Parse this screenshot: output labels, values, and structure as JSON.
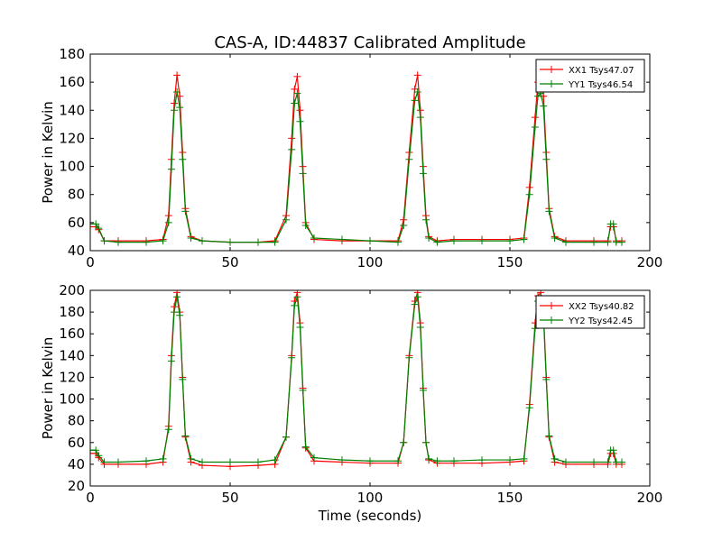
{
  "figure_title": "CAS-A, ID:44837 Calibrated Amplitude",
  "colors": {
    "xx": "#ff0000",
    "yy": "#008000",
    "axis": "#000000"
  },
  "chart_data": [
    {
      "type": "line",
      "title": "CAS-A, ID:44837 Calibrated Amplitude",
      "xlabel": "",
      "ylabel": "Power in Kelvin",
      "xlim": [
        0,
        200
      ],
      "ylim": [
        40,
        180
      ],
      "xticks": [
        0,
        50,
        100,
        150,
        200
      ],
      "yticks": [
        40,
        60,
        80,
        100,
        120,
        140,
        160,
        180
      ],
      "grid": false,
      "legend_position": "top-right",
      "marker": "+",
      "series": [
        {
          "name": "XX1 Tsys47.07",
          "color": "#ff0000",
          "x": [
            0,
            2,
            3,
            5,
            10,
            20,
            26,
            28,
            29,
            30,
            31,
            32,
            33,
            34,
            36,
            40,
            50,
            60,
            66,
            70,
            72,
            73,
            74,
            75,
            76,
            77,
            80,
            90,
            100,
            110,
            112,
            114,
            116,
            117,
            118,
            119,
            120,
            121,
            124,
            130,
            140,
            150,
            155,
            157,
            159,
            160,
            161,
            162,
            163,
            164,
            166,
            170,
            180,
            185,
            186,
            187,
            188,
            190
          ],
          "values": [
            57,
            57,
            55,
            47,
            47,
            47,
            48,
            65,
            105,
            145,
            165,
            150,
            110,
            70,
            50,
            47,
            46,
            46,
            47,
            65,
            120,
            155,
            164,
            140,
            100,
            60,
            48,
            47,
            47,
            47,
            62,
            110,
            155,
            165,
            140,
            100,
            65,
            50,
            47,
            48,
            48,
            48,
            49,
            85,
            135,
            160,
            165,
            150,
            110,
            70,
            50,
            47,
            47,
            47,
            57,
            57,
            47,
            47
          ]
        },
        {
          "name": "YY1 Tsys46.54",
          "color": "#008000",
          "x": [
            0,
            2,
            3,
            5,
            10,
            20,
            26,
            28,
            29,
            30,
            31,
            32,
            33,
            34,
            36,
            40,
            50,
            60,
            66,
            70,
            72,
            73,
            74,
            75,
            76,
            77,
            80,
            90,
            100,
            110,
            112,
            114,
            116,
            117,
            118,
            119,
            120,
            121,
            124,
            130,
            140,
            150,
            155,
            157,
            159,
            160,
            161,
            162,
            163,
            164,
            166,
            170,
            180,
            185,
            186,
            187,
            188,
            190
          ],
          "values": [
            59,
            59,
            56,
            47,
            46,
            46,
            47,
            60,
            98,
            140,
            153,
            142,
            105,
            68,
            49,
            47,
            46,
            46,
            46,
            62,
            112,
            145,
            152,
            132,
            95,
            58,
            49,
            48,
            47,
            46,
            58,
            105,
            147,
            153,
            135,
            95,
            62,
            49,
            46,
            47,
            47,
            47,
            48,
            80,
            128,
            150,
            152,
            143,
            105,
            68,
            49,
            46,
            46,
            46,
            59,
            59,
            46,
            46
          ]
        }
      ]
    },
    {
      "type": "line",
      "title": "",
      "xlabel": "Time (seconds)",
      "ylabel": "Power in Kelvin",
      "xlim": [
        0,
        200
      ],
      "ylim": [
        20,
        200
      ],
      "xticks": [
        0,
        50,
        100,
        150,
        200
      ],
      "yticks": [
        20,
        40,
        60,
        80,
        100,
        120,
        140,
        160,
        180,
        200
      ],
      "grid": false,
      "legend_position": "top-right",
      "marker": "+",
      "series": [
        {
          "name": "XX2 Tsys40.82",
          "color": "#ff0000",
          "x": [
            0,
            2,
            3,
            5,
            10,
            20,
            26,
            28,
            29,
            30,
            31,
            32,
            33,
            34,
            36,
            40,
            50,
            60,
            66,
            70,
            72,
            73,
            74,
            75,
            76,
            77,
            80,
            90,
            100,
            110,
            112,
            114,
            116,
            117,
            118,
            119,
            120,
            121,
            124,
            130,
            140,
            150,
            155,
            157,
            159,
            160,
            161,
            162,
            163,
            164,
            166,
            170,
            180,
            185,
            186,
            187,
            188,
            190
          ],
          "values": [
            50,
            50,
            46,
            40,
            40,
            40,
            42,
            75,
            140,
            185,
            198,
            180,
            120,
            65,
            42,
            39,
            38,
            39,
            40,
            65,
            140,
            190,
            198,
            170,
            110,
            55,
            43,
            42,
            41,
            41,
            60,
            140,
            190,
            198,
            170,
            110,
            60,
            44,
            41,
            41,
            41,
            42,
            43,
            95,
            170,
            195,
            198,
            180,
            120,
            65,
            42,
            40,
            40,
            40,
            50,
            50,
            40,
            40
          ]
        },
        {
          "name": "YY2 Tsys42.45",
          "color": "#008000",
          "x": [
            0,
            2,
            3,
            5,
            10,
            20,
            26,
            28,
            29,
            30,
            31,
            32,
            33,
            34,
            36,
            40,
            50,
            60,
            66,
            70,
            72,
            73,
            74,
            75,
            76,
            77,
            80,
            90,
            100,
            110,
            112,
            114,
            116,
            117,
            118,
            119,
            120,
            121,
            124,
            130,
            140,
            150,
            155,
            157,
            159,
            160,
            161,
            162,
            163,
            164,
            166,
            170,
            180,
            185,
            186,
            187,
            188,
            190
          ],
          "values": [
            53,
            53,
            48,
            42,
            42,
            43,
            45,
            72,
            135,
            180,
            194,
            177,
            118,
            66,
            45,
            42,
            42,
            42,
            44,
            65,
            138,
            186,
            194,
            166,
            108,
            56,
            46,
            44,
            43,
            43,
            60,
            138,
            187,
            194,
            166,
            108,
            60,
            45,
            43,
            43,
            44,
            44,
            45,
            92,
            165,
            190,
            194,
            176,
            118,
            66,
            45,
            42,
            42,
            42,
            53,
            53,
            42,
            42
          ]
        }
      ]
    }
  ]
}
